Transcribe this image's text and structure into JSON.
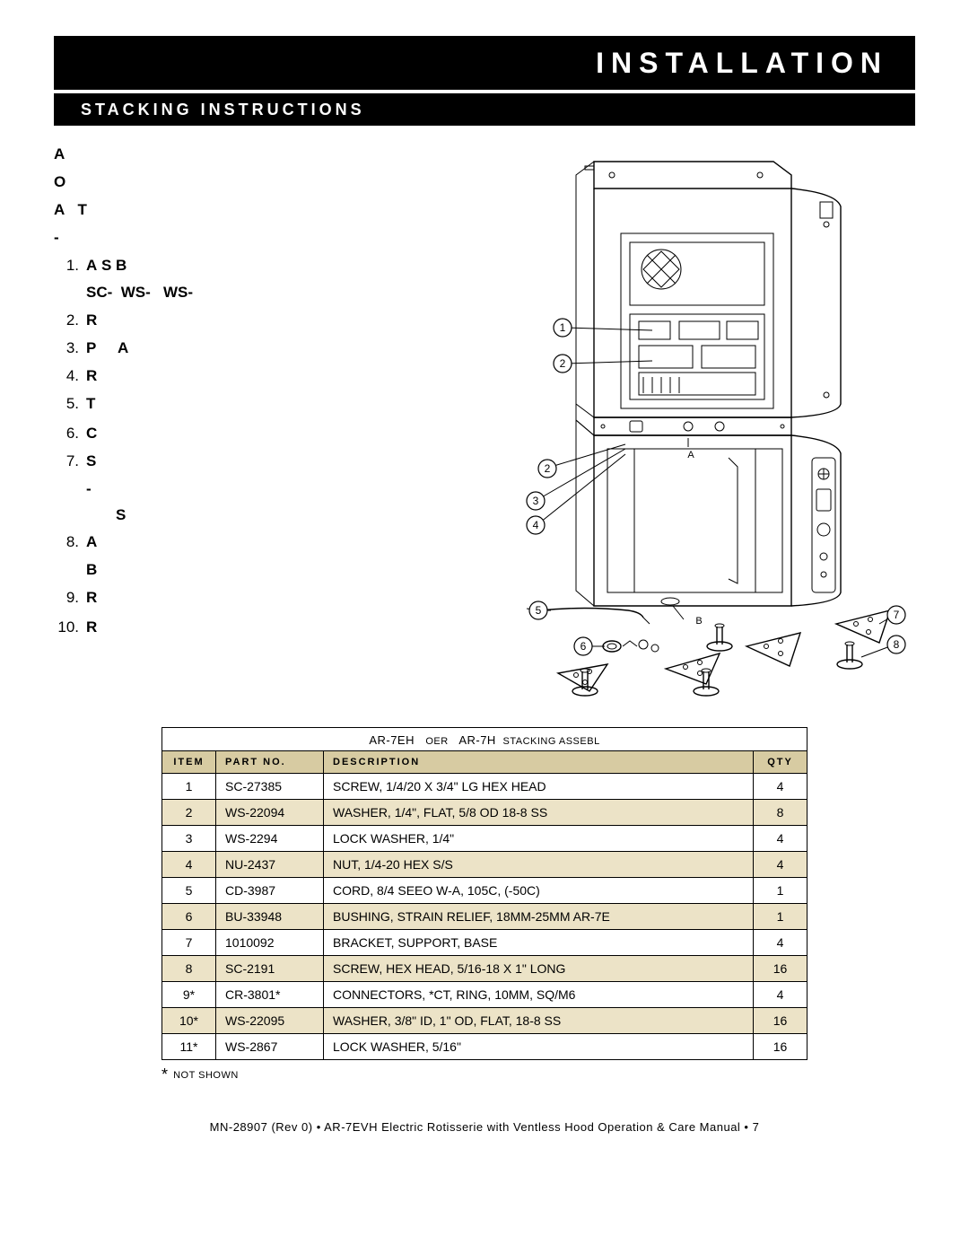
{
  "header": {
    "title": "INSTALLATION",
    "subtitle": "STACKING INSTRUCTIONS"
  },
  "instructions": {
    "preamble": [
      "A",
      "O",
      "A   T",
      "-"
    ],
    "steps": [
      {
        "num": "1.",
        "text": "A S B",
        "sub": "SC-  WS-   WS-"
      },
      {
        "num": "2.",
        "text": "R"
      },
      {
        "num": "3.",
        "text": "P     A"
      },
      {
        "num": "4.",
        "text": "R"
      },
      {
        "num": "5.",
        "text": "T"
      },
      {
        "num": "",
        "text": ""
      },
      {
        "num": "6.",
        "text": "C"
      },
      {
        "num": "7.",
        "text": "S",
        "sub": "-\n       S"
      },
      {
        "num": "8.",
        "text": "A",
        "sub": "B"
      },
      {
        "num": "9.",
        "text": "R"
      },
      {
        "num": "",
        "text": ""
      },
      {
        "num": "10.",
        "text": "R"
      }
    ]
  },
  "diagram": {
    "labels": {
      "A": "A",
      "B": "B"
    },
    "callouts": [
      "1",
      "2",
      "2",
      "3",
      "4",
      "5",
      "6",
      "7",
      "8"
    ]
  },
  "parts_table": {
    "caption_left": "AR-7EH",
    "caption_mid_small": "OER",
    "caption_right": "AR-7H",
    "caption_tail_small": "STACKING ASSEBL",
    "headers": {
      "item": "ITEM",
      "partno": "PART NO.",
      "desc": "DESCRIPTION",
      "qty": "QTY"
    },
    "rows": [
      {
        "item": "1",
        "partno": "SC-27385",
        "desc": "SCREW, 1/4/20 X 3/4\" LG HEX HEAD",
        "qty": "4",
        "shade": false
      },
      {
        "item": "2",
        "partno": "WS-22094",
        "desc": "WASHER, 1/4\", FLAT, 5/8 OD 18-8 SS",
        "qty": "8",
        "shade": true
      },
      {
        "item": "3",
        "partno": "WS-2294",
        "desc": "LOCK WASHER,  1/4\"",
        "qty": "4",
        "shade": false
      },
      {
        "item": "4",
        "partno": "NU-2437",
        "desc": "NUT, 1/4-20 HEX S/S",
        "qty": "4",
        "shade": true
      },
      {
        "item": "5",
        "partno": "CD-3987",
        "desc": "CORD, 8/4 SEEO W-A, 105C, (-50C)",
        "qty": "1",
        "shade": false
      },
      {
        "item": "6",
        "partno": "BU-33948",
        "desc": "BUSHING, STRAIN RELIEF, 18MM-25MM AR-7E",
        "qty": "1",
        "shade": true
      },
      {
        "item": "7",
        "partno": "1010092",
        "desc": "BRACKET, SUPPORT, BASE",
        "qty": "4",
        "shade": false
      },
      {
        "item": "8",
        "partno": "SC-2191",
        "desc": "SCREW, HEX HEAD, 5/16-18 X 1\" LONG",
        "qty": "16",
        "shade": true
      },
      {
        "item": "9*",
        "partno": "CR-3801*",
        "desc": "CONNECTORS, *CT, RING, 10MM, SQ/M6",
        "qty": "4",
        "shade": false
      },
      {
        "item": "10*",
        "partno": "WS-22095",
        "desc": "WASHER, 3/8\" ID, 1\" OD, FLAT, 18-8 SS",
        "qty": "16",
        "shade": true
      },
      {
        "item": "11*",
        "partno": "WS-2867",
        "desc": "LOCK WASHER,  5/16\"",
        "qty": "16",
        "shade": false
      }
    ],
    "notshown": "NOT SHOWN"
  },
  "footer": {
    "text": "MN-28907 (Rev 0) • AR-7EVH Electric Rotisserie with Ventless Hood Operation & Care Manual • 7"
  },
  "colors": {
    "header_bg": "#000000",
    "header_fg": "#ffffff",
    "table_header_bg": "#d7cba2",
    "table_shade_bg": "#ece3c7"
  }
}
